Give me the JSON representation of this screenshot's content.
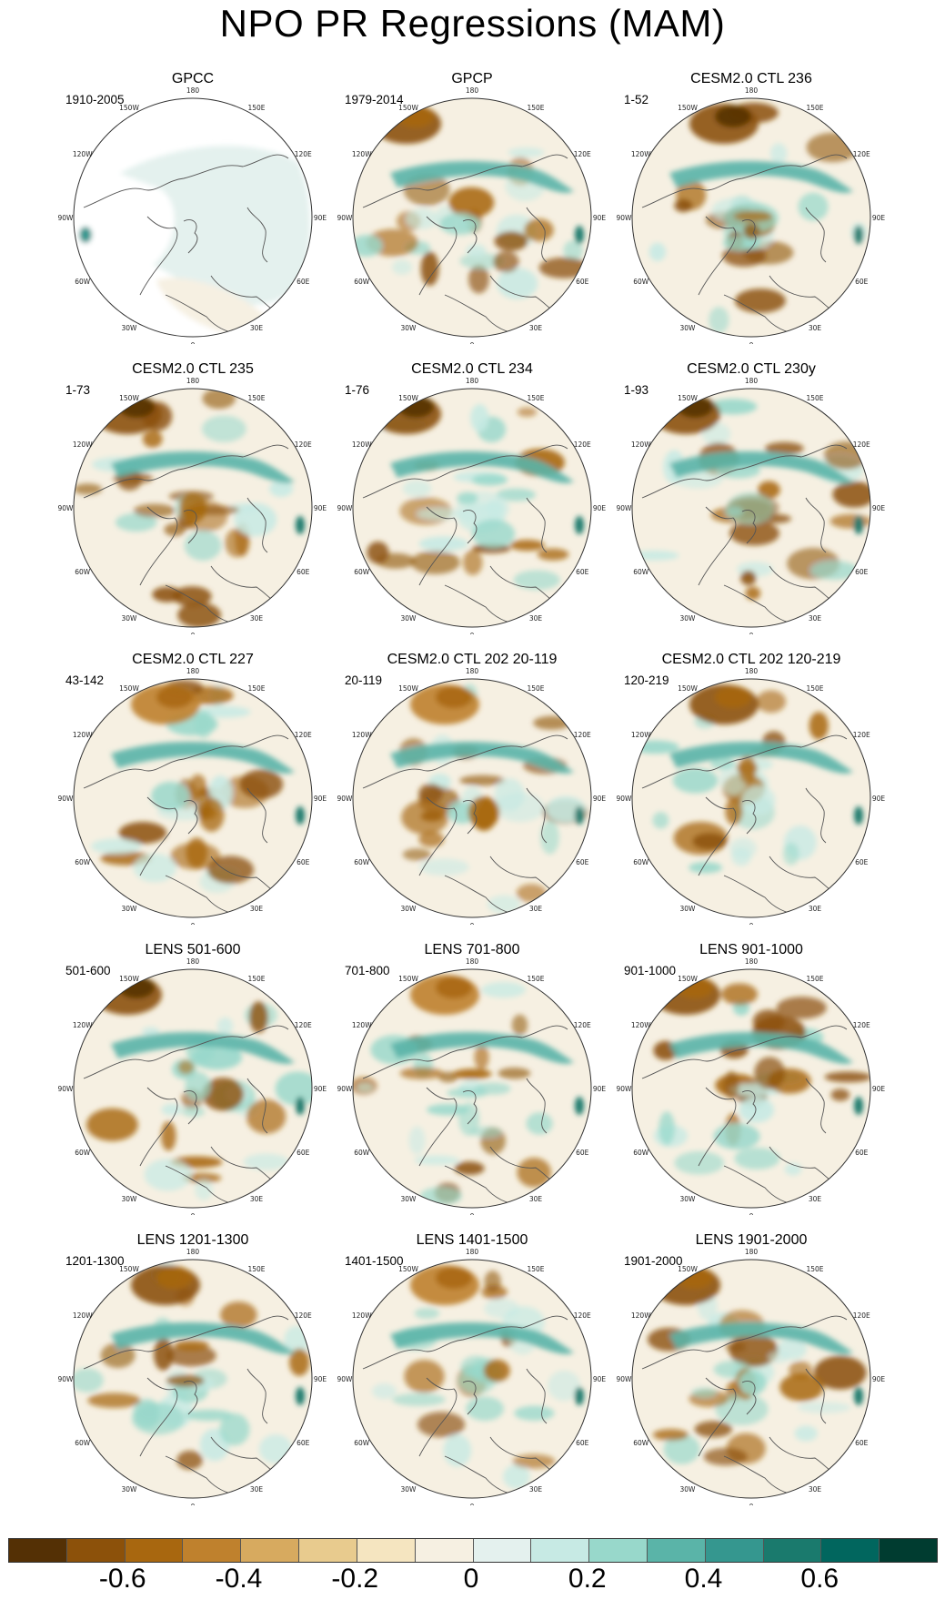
{
  "title": "NPO PR Regressions (MAM)",
  "panels": [
    {
      "title": "GPCC",
      "period": "1910-2005"
    },
    {
      "title": "GPCP",
      "period": "1979-2014"
    },
    {
      "title": "CESM2.0 CTL 236",
      "period": "1-52"
    },
    {
      "title": "CESM2.0 CTL 235",
      "period": "1-73"
    },
    {
      "title": "CESM2.0 CTL 234",
      "period": "1-76"
    },
    {
      "title": "CESM2.0 CTL 230y",
      "period": "1-93"
    },
    {
      "title": "CESM2.0 CTL 227",
      "period": "43-142"
    },
    {
      "title": "CESM2.0 CTL 202 20-119",
      "period": "20-119"
    },
    {
      "title": "CESM2.0 CTL 202 120-219",
      "period": "120-219"
    },
    {
      "title": "LENS 501-600",
      "period": "501-600"
    },
    {
      "title": "LENS 701-800",
      "period": "701-800"
    },
    {
      "title": "LENS 901-1000",
      "period": "901-1000"
    },
    {
      "title": "LENS 1201-1300",
      "period": "1201-1300"
    },
    {
      "title": "LENS 1401-1500",
      "period": "1401-1500"
    },
    {
      "title": "LENS 1901-2000",
      "period": "1901-2000"
    }
  ],
  "longitude_labels": [
    "180",
    "150E",
    "120E",
    "90E",
    "60E",
    "30E",
    "0",
    "30W",
    "60W",
    "90W",
    "120W",
    "150W"
  ],
  "colorbar": {
    "colors": [
      "#543005",
      "#8c510a",
      "#a8670f",
      "#bf812d",
      "#d7aa5f",
      "#e8cb8e",
      "#f5e5c0",
      "#f6f0e2",
      "#e4f1ee",
      "#c7eae4",
      "#98d8cb",
      "#5ab4a8",
      "#35978f",
      "#1a7a6d",
      "#01665e",
      "#003c30"
    ],
    "ticks": [
      "-0.6",
      "-0.4",
      "-0.2",
      "0",
      "0.2",
      "0.4",
      "0.6"
    ]
  }
}
